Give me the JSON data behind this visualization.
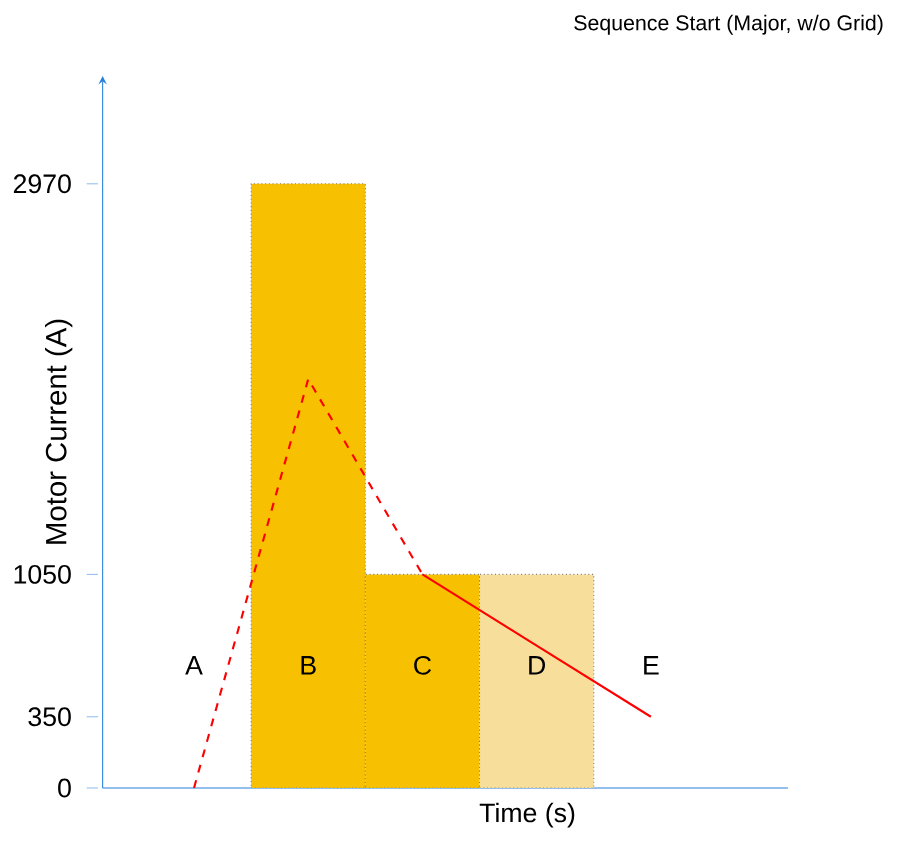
{
  "chart_data": {
    "type": "bar",
    "title": "Sequence Start (Major, w/o Grid)",
    "xlabel": "Time (s)",
    "ylabel": "Motor Current (A)",
    "categories": [
      "A",
      "B",
      "C",
      "D",
      "E"
    ],
    "ylim": [
      0,
      3500
    ],
    "yticks": [
      0,
      350,
      1050,
      2970
    ],
    "series": [
      {
        "colors": [
          "#f7c000",
          "#f7c000",
          "#f7c000",
          "#f7df9b",
          "#f7c000"
        ],
        "values": [
          null,
          2970,
          1050,
          1050,
          null
        ]
      },
      {
        "type": "line",
        "color": "#ff0000",
        "line_style": "dashed",
        "values": [
          0,
          2010,
          1050,
          null,
          null
        ]
      },
      {
        "type": "line",
        "color": "#ff0000",
        "line_style": "solid",
        "values": [
          null,
          null,
          1050,
          700,
          350
        ]
      }
    ]
  }
}
